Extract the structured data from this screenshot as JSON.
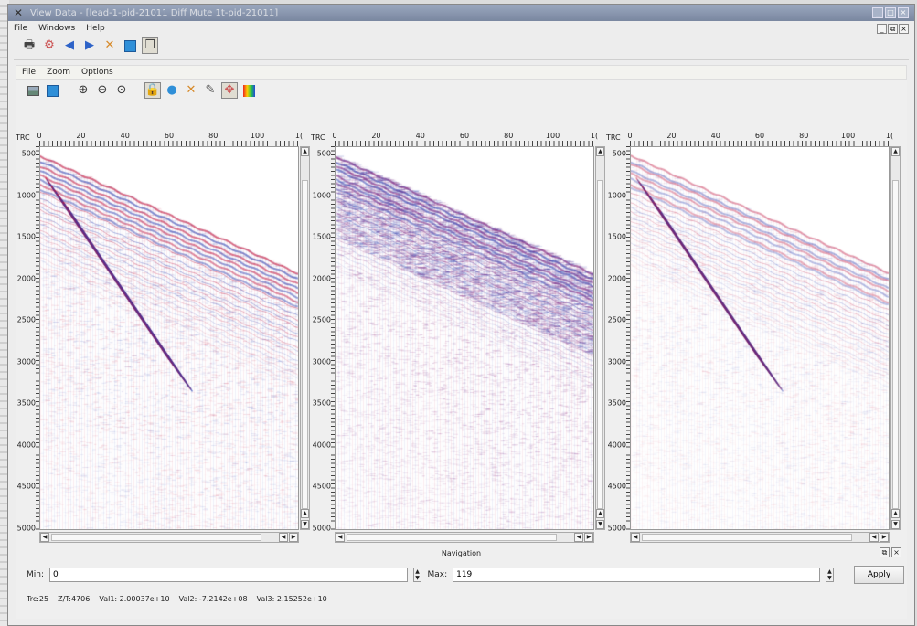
{
  "window": {
    "title": "View Data - [lead-1-pid-21011 Diff Mute 1t-pid-21011]",
    "title_controls": [
      "_",
      "□",
      "×"
    ]
  },
  "menubar": {
    "items": [
      "File",
      "Windows",
      "Help"
    ],
    "mdi_controls": [
      "_",
      "⧉",
      "×"
    ]
  },
  "toolbar": {
    "icons": [
      "print-icon",
      "settings-icon",
      "back-arrow-icon",
      "forward-arrow-icon",
      "close-cross-icon",
      "window-icon",
      "copy-icon"
    ]
  },
  "inner": {
    "menubar": [
      "File",
      "Zoom",
      "Options"
    ],
    "toolbar_icons": [
      "image-icon",
      "window-icon",
      "zoom-in-icon",
      "zoom-out-icon",
      "zoom-reset-icon",
      "lock-icon",
      "palette-icon",
      "cross-icon",
      "pen-icon",
      "move-icon",
      "colorbar-icon"
    ]
  },
  "panels": [
    {
      "axis_name": "TRC",
      "x_ticks": [
        "0",
        "20",
        "40",
        "60",
        "80",
        "100",
        "1("
      ],
      "y_ticks": [
        "500",
        "1000",
        "1500",
        "2000",
        "2500",
        "3000",
        "3500",
        "4000",
        "4500",
        "5000"
      ]
    },
    {
      "axis_name": "TRC",
      "x_ticks": [
        "0",
        "20",
        "40",
        "60",
        "80",
        "100",
        "1("
      ],
      "y_ticks": [
        "500",
        "1000",
        "1500",
        "2000",
        "2500",
        "3000",
        "3500",
        "4000",
        "4500",
        "5000"
      ]
    },
    {
      "axis_name": "TRC",
      "x_ticks": [
        "0",
        "20",
        "40",
        "60",
        "80",
        "100",
        "1("
      ],
      "y_ticks": [
        "500",
        "1000",
        "1500",
        "2000",
        "2500",
        "3000",
        "3500",
        "4000",
        "4500",
        "5000"
      ]
    }
  ],
  "navigation": {
    "label": "Navigation",
    "min_label": "Min:",
    "min_value": "0",
    "max_label": "Max:",
    "max_value": "119",
    "apply_label": "Apply"
  },
  "status": {
    "trc": "Trc:25",
    "zt": "Z/T:4706",
    "val1": "Val1: 2.00037e+10",
    "val2": "Val2: -7.2142e+08",
    "val3": "Val3: 2.15252e+10"
  },
  "colors": {
    "positive": "#c0103a",
    "negative": "#2b3fb0",
    "mid": "#7a1a7a"
  }
}
